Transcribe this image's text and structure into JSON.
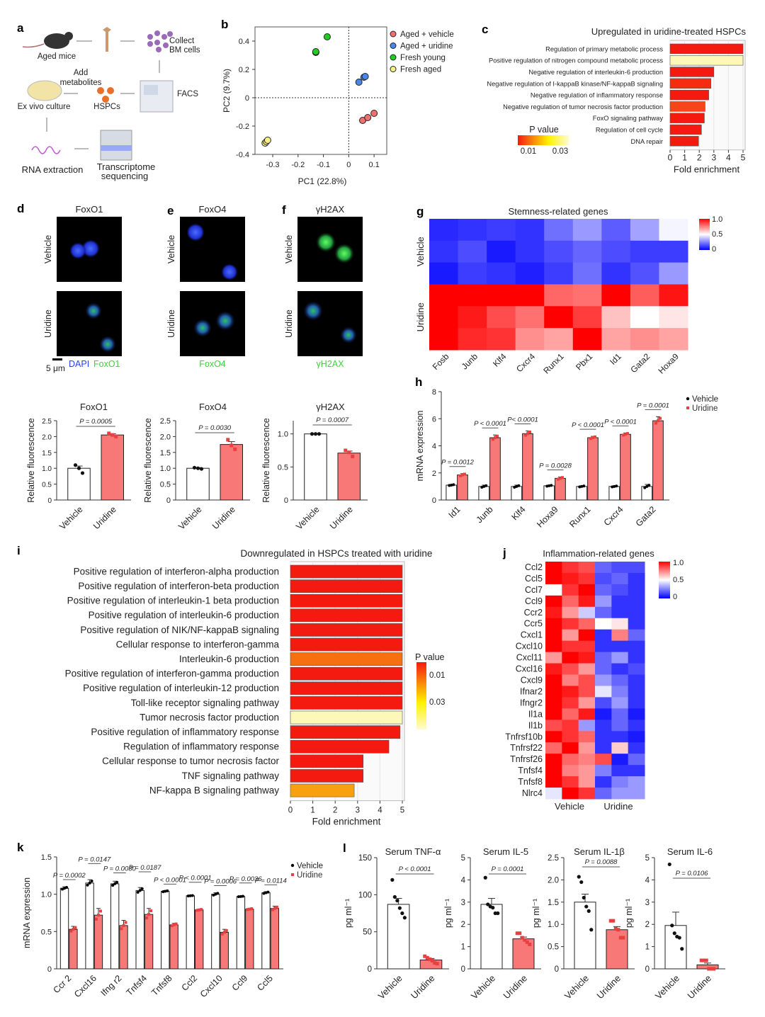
{
  "panel_labels": [
    "a",
    "b",
    "c",
    "d",
    "e",
    "f",
    "g",
    "h",
    "i",
    "j",
    "k",
    "l"
  ],
  "schematic": {
    "aged_mice": "Aged mice",
    "collect": "Collect",
    "bm_cells": "BM cells",
    "facs": "FACS",
    "add": "Add",
    "metabolites": "metabolites",
    "hspcs": "HSPCs",
    "culture": "Ex vivo culture",
    "rna": "RNA extraction",
    "seq1": "Transcriptome",
    "seq2": "sequencing"
  },
  "microscopy": [
    {
      "title": "FoxO1",
      "rows": [
        "Vehicle",
        "Uridine"
      ],
      "legend": [
        "DAPI",
        "FoxO1"
      ],
      "scale_bar": "5 μm",
      "stain_color": "#3cd23c"
    },
    {
      "title": "FoxO4",
      "rows": [
        "Vehicle",
        "Uridine"
      ],
      "legend": [
        "FoxO4"
      ]
    },
    {
      "title": "γH2AX",
      "rows": [
        "Vehicle",
        "Uridine"
      ],
      "legend": [
        "γH2AX"
      ]
    }
  ],
  "colors": {
    "vehicle": "#ffffff",
    "uridine": "#f87878",
    "dapi": "#2a3cff",
    "stain": "#3cd23c"
  },
  "chart_data": [
    {
      "type": "scatter",
      "xlabel": "PC1 (22.8%)",
      "ylabel": "PC2 (9.7%)",
      "xlim": [
        -0.37,
        0.15
      ],
      "ylim": [
        -0.4,
        0.5
      ],
      "xticks": [
        "-0.3",
        "-0.2",
        "-0.1",
        "0",
        "0.1"
      ],
      "yticks": [
        "0.4",
        "0.2",
        "0",
        "-0.2",
        "-0.4"
      ],
      "legend": "right",
      "series": [
        {
          "name": "Aged + vehicle",
          "color": "#f07070",
          "points": [
            [
              0.055,
              -0.16
            ],
            [
              0.075,
              -0.14
            ],
            [
              0.1,
              -0.11
            ]
          ]
        },
        {
          "name": "Aged + uridine",
          "color": "#4a86e8",
          "points": [
            [
              0.04,
              0.11
            ],
            [
              0.06,
              0.145
            ],
            [
              0.065,
              0.15
            ]
          ]
        },
        {
          "name": "Fresh young",
          "color": "#22cc22",
          "points": [
            [
              -0.085,
              0.43
            ],
            [
              -0.13,
              0.32
            ],
            [
              -0.13,
              0.325
            ]
          ]
        },
        {
          "name": "Fresh aged",
          "color": "#f6f08a",
          "points": [
            [
              -0.33,
              -0.32
            ],
            [
              -0.325,
              -0.31
            ],
            [
              -0.32,
              -0.3
            ]
          ]
        }
      ]
    },
    {
      "type": "bar",
      "orientation": "horizontal",
      "title": "Upregulated in uridine-treated HSPCs",
      "categories": [
        "Regulation of primary metabolic process",
        "Positive regulation of nitrogen compound metabolic process",
        "Negative regulation of interleukin-6 production",
        "Negative regulation of I-kappaB kinase/NF-kappaB signaling",
        "Negative regulation of inflammatory response",
        "Negative regulation of tumor necrosis factor production",
        "FoxO signaling pathway",
        "Regulation of cell cycle",
        "DNA repair"
      ],
      "values": [
        5,
        5,
        3.0,
        2.8,
        2.65,
        2.4,
        2.35,
        2.15,
        1.95
      ],
      "colors": [
        "#f41a10",
        "#fdf8b8",
        "#f41a10",
        "#f52c10",
        "#f41a10",
        "#f64518",
        "#f41a10",
        "#f41a10",
        "#f41a10"
      ],
      "xlabel": "Fold enrichment",
      "xlim": [
        0,
        5
      ],
      "xticks": [
        "0",
        "1",
        "2",
        "3",
        "4",
        "5"
      ],
      "colorbar": {
        "label": "P value",
        "ticks": [
          "0.01",
          "0.03"
        ]
      }
    },
    {
      "type": "heatmap",
      "title": "Stemness-related genes",
      "columns": [
        "Fosb",
        "Junb",
        "Klf4",
        "Cxcr4",
        "Runx1",
        "Pbx1",
        "Id1",
        "Gata2",
        "Hoxa9"
      ],
      "row_groups": [
        "Vehicle",
        "Uridine"
      ],
      "values": [
        [
          0.08,
          0.1,
          0.12,
          0.1,
          0.22,
          0.3,
          0.18,
          0.32,
          0.48
        ],
        [
          0.1,
          0.15,
          0.05,
          0.1,
          0.15,
          0.2,
          0.15,
          0.12,
          0.12
        ],
        [
          0.05,
          0.12,
          0.1,
          0.06,
          0.12,
          0.22,
          0.1,
          0.16,
          0.3
        ],
        [
          1,
          1,
          1,
          1,
          0.8,
          0.78,
          1,
          0.82,
          0.96
        ],
        [
          1,
          0.95,
          0.85,
          0.78,
          1,
          0.88,
          0.62,
          0.5,
          0.55
        ],
        [
          1,
          0.92,
          0.9,
          0.72,
          0.68,
          1,
          0.68,
          0.72,
          0.68
        ]
      ],
      "colorbar": {
        "ticks": [
          "1.0",
          "0.5",
          "0"
        ]
      }
    },
    {
      "type": "bar",
      "title": "FoxO1",
      "ylabel": "Relative fluorescence",
      "categories": [
        "Vehicle",
        "Uridine"
      ],
      "values": [
        1.0,
        2.05
      ],
      "errors": [
        0.07,
        0.04
      ],
      "points": [
        [
          1.1,
          1.0,
          0.85
        ],
        [
          2.1,
          2.05,
          2.0
        ]
      ],
      "ylim": [
        0,
        2.5
      ],
      "yticks": [
        "0",
        "0.5",
        "1.0",
        "1.5",
        "2.0",
        "2.5"
      ],
      "p_value": "P = 0.0005"
    },
    {
      "type": "bar",
      "title": "FoxO4",
      "ylabel": "Relative fluorescence",
      "categories": [
        "Vehicle",
        "Uridine"
      ],
      "values": [
        1.0,
        1.75
      ],
      "errors": [
        0.02,
        0.09
      ],
      "points": [
        [
          1.02,
          1.0,
          0.98
        ],
        [
          1.9,
          1.72,
          1.6
        ]
      ],
      "ylim": [
        0,
        2.5
      ],
      "yticks": [
        "0",
        "0.5",
        "1.0",
        "1.5",
        "2.0",
        "2.5"
      ],
      "p_value": "P = 0.0030"
    },
    {
      "type": "bar",
      "title": "γH2AX",
      "ylabel": "Relative fluorescence",
      "categories": [
        "Vehicle",
        "Uridine"
      ],
      "values": [
        1.0,
        0.71
      ],
      "errors": [
        0.005,
        0.03
      ],
      "points": [
        [
          1.0,
          1.0,
          1.0
        ],
        [
          0.75,
          0.72,
          0.66
        ]
      ],
      "ylim": [
        0,
        1.2
      ],
      "yticks": [
        "0",
        "0.5",
        "1.0"
      ],
      "p_value": "P = 0.0007"
    },
    {
      "type": "bar",
      "ylabel": "mRNA expression",
      "ylim": [
        0,
        8
      ],
      "yticks": [
        "0",
        "2",
        "4",
        "6",
        "8"
      ],
      "legend": "top-right",
      "categories": [
        "Id1",
        "Junb",
        "Klf4",
        "Hoxa9",
        "Runx1",
        "Cxcr4",
        "Gata2"
      ],
      "series": [
        {
          "name": "Vehicle",
          "values": [
            1.1,
            1.0,
            1.0,
            1.05,
            1.0,
            1.0,
            1.0
          ]
        },
        {
          "name": "Uridine",
          "values": [
            1.85,
            4.6,
            4.9,
            1.6,
            4.6,
            4.85,
            5.85
          ]
        }
      ],
      "errors": [
        0.1,
        0.2,
        0.2,
        0.1,
        0.1,
        0.1,
        0.3
      ],
      "p_values": [
        "P = 0.0012",
        "P < 0.0001",
        "P< 0.0001",
        "P = 0.0028",
        "P < 0.0001",
        "P < 0.0001",
        "P = 0.0001"
      ]
    },
    {
      "type": "bar",
      "orientation": "horizontal",
      "title": "Downregulated in HSPCs treated with uridine",
      "categories": [
        "Positive regulation of interferon-alpha production",
        "Positive regulation of interferon-beta production",
        "Positive regulation of interleukin-1 beta production",
        "Positive regulation of interleukin-6 production",
        "Positive regulation of NIK/NF-kappaB signaling",
        "Cellular response to interferon-gamma",
        "Interleukin-6 production",
        "Positive regulation of interferon-gamma production",
        "Positive regulation of interleukin-12 production",
        "Toll-like receptor signaling pathway",
        "Tumor necrosis factor production",
        "Positive regulation of inflammatory response",
        "Regulation of inflammatory response",
        "Cellular response to tumor necrosis factor",
        "TNF signaling pathway",
        "NF-kappa B signaling pathway"
      ],
      "values": [
        5,
        5,
        5,
        5,
        5,
        5,
        5,
        5,
        5,
        5,
        5,
        4.9,
        4.4,
        3.25,
        3.25,
        2.85
      ],
      "colors": [
        "#f41a10",
        "#f41a10",
        "#f41a10",
        "#f41a10",
        "#f41a10",
        "#f41a10",
        "#f7700f",
        "#f41a10",
        "#f41a10",
        "#f41a10",
        "#fdf8b8",
        "#f41a10",
        "#f41a10",
        "#f41a10",
        "#f41a10",
        "#f8a010"
      ],
      "xlabel": "Fold enrichment",
      "xlim": [
        0,
        5
      ],
      "xticks": [
        "0",
        "1",
        "2",
        "3",
        "4",
        "5"
      ],
      "colorbar": {
        "label": "P value",
        "ticks": [
          "0.01",
          "0.03"
        ]
      }
    },
    {
      "type": "heatmap",
      "title": "Inflammation-related genes",
      "rows": [
        "Ccl2",
        "Ccl5",
        "Ccl7",
        "Ccl9",
        "Ccr2",
        "Ccr5",
        "Cxcl1",
        "Cxcl10",
        "Cxcl11",
        "Cxcl16",
        "Cxcl9",
        "Ifnar2",
        "Ifngr2",
        "Il1a",
        "Il1b",
        "Tnfrsf10b",
        "Tnfrsf22",
        "Tnfrsf26",
        "Tnfsf4",
        "Tnfsf8",
        "Nlrc4"
      ],
      "column_groups": [
        "Vehicle",
        "Uridine"
      ],
      "values": [
        [
          1,
          0.9,
          0.85,
          0.2,
          0.15,
          0.15
        ],
        [
          1,
          0.95,
          0.9,
          0.15,
          0.2,
          0.1
        ],
        [
          0.5,
          0.9,
          1,
          0.2,
          0.15,
          0.1
        ],
        [
          1,
          0.8,
          0.95,
          0.3,
          0.1,
          0.1
        ],
        [
          0.95,
          0.7,
          0.4,
          0.2,
          0.1,
          0.1
        ],
        [
          1,
          0.9,
          0.8,
          0.5,
          0.55,
          0.1
        ],
        [
          1,
          0.7,
          1,
          0.1,
          0.75,
          0.2
        ],
        [
          1,
          0.9,
          0.9,
          0.1,
          0.1,
          0.1
        ],
        [
          0.7,
          1,
          0.95,
          0.2,
          0.3,
          0.1
        ],
        [
          0.95,
          0.85,
          0.7,
          0.2,
          0.1,
          0.15
        ],
        [
          1,
          0.75,
          0.85,
          0.3,
          0.2,
          0.1
        ],
        [
          1,
          0.95,
          0.85,
          0.45,
          0.25,
          0.1
        ],
        [
          1,
          0.9,
          0.7,
          0.15,
          0.3,
          0.1
        ],
        [
          1,
          0.8,
          0.95,
          0.05,
          0.2,
          0.05
        ],
        [
          0.85,
          0.9,
          0.3,
          0.1,
          0.2,
          0.1
        ],
        [
          1,
          0.9,
          0.8,
          0.1,
          0.1,
          0.05
        ],
        [
          0.8,
          1,
          0.7,
          0.1,
          0.6,
          0.1
        ],
        [
          1,
          0.8,
          0.75,
          0.85,
          0.05,
          0.2
        ],
        [
          1,
          0.75,
          0.7,
          0.25,
          0.1,
          0.1
        ],
        [
          1,
          0.9,
          0.7,
          0.1,
          0.25,
          0.3
        ],
        [
          0.45,
          1,
          0.9,
          0.2,
          0.3,
          0.3
        ]
      ],
      "colorbar": {
        "ticks": [
          "1.0",
          "0.5",
          "0"
        ]
      }
    },
    {
      "type": "bar",
      "ylabel": "mRNA expression",
      "ylim": [
        0,
        1.5
      ],
      "yticks": [
        "0",
        "0.5",
        "1.0",
        "1.5"
      ],
      "legend": "top-right",
      "categories": [
        "Ccr 2",
        "Cxcl16",
        "Ifng r2",
        "Tnfsf4",
        "Tnfsf8",
        "Ccl2",
        "Cxcl10",
        "Ccl9",
        "Ccl5"
      ],
      "series": [
        {
          "name": "Vehicle",
          "values": [
            1.08,
            1.15,
            1.14,
            1.05,
            1.04,
            0.98,
            1.0,
            0.97,
            1.02
          ]
        },
        {
          "name": "Uridine",
          "values": [
            0.53,
            0.72,
            0.58,
            0.73,
            0.59,
            0.79,
            0.49,
            0.8,
            0.81
          ]
        }
      ],
      "errors": [
        0.04,
        0.09,
        0.07,
        0.08,
        0.02,
        0.01,
        0.04,
        0.01,
        0.03
      ],
      "p_values": [
        "P = 0.0002",
        "P = 0.0147",
        "P = 0.0030",
        "P = 0.0187",
        "P < 0.0001",
        "P < 0.0001",
        "P = 0.0006",
        "P = 0.0036",
        "P = 0.0114"
      ]
    },
    {
      "type": "bar",
      "title": "Serum TNF-α",
      "ylabel": "pg ml⁻¹",
      "categories": [
        "Vehicle",
        "Uridine"
      ],
      "values": [
        87,
        12
      ],
      "errors": [
        8,
        2
      ],
      "points": [
        [
          120,
          97,
          92,
          82,
          75,
          69
        ],
        [
          17,
          15,
          13,
          11,
          8,
          7
        ]
      ],
      "ylim": [
        0,
        150
      ],
      "yticks": [
        "0",
        "50",
        "100",
        "150"
      ],
      "p_value": "P < 0.0001"
    },
    {
      "type": "bar",
      "title": "Serum IL-5",
      "ylabel": "pg ml⁻¹",
      "categories": [
        "Vehicle",
        "Uridine"
      ],
      "values": [
        2.9,
        1.35
      ],
      "errors": [
        0.27,
        0.08
      ],
      "points": [
        [
          4.1,
          2.9,
          2.8,
          2.75,
          2.5,
          2.5
        ],
        [
          1.6,
          1.6,
          1.4,
          1.3,
          1.2,
          1.1
        ]
      ],
      "ylim": [
        0,
        5
      ],
      "yticks": [
        "0",
        "1",
        "2",
        "3",
        "4",
        "5"
      ],
      "p_value": "P = 0.0001"
    },
    {
      "type": "bar",
      "title": "Serum IL-1β",
      "ylabel": "pg ml⁻¹",
      "categories": [
        "Vehicle",
        "Uridine"
      ],
      "values": [
        1.5,
        0.88
      ],
      "errors": [
        0.18,
        0.07
      ],
      "points": [
        [
          2.07,
          1.95,
          1.6,
          1.4,
          1.3,
          0.88
        ],
        [
          1.08,
          1.08,
          0.9,
          0.88,
          0.7,
          0.7
        ]
      ],
      "ylim": [
        0,
        2.5
      ],
      "yticks": [
        "0",
        "0.5",
        "1.0",
        "1.5",
        "2.0",
        "2.5"
      ],
      "p_value": "P = 0.0088"
    },
    {
      "type": "bar",
      "title": "Serum IL-6",
      "ylabel": "pg ml⁻¹",
      "categories": [
        "Vehicle",
        "Uridine"
      ],
      "values": [
        1.95,
        0.18
      ],
      "errors": [
        0.6,
        0.08
      ],
      "points": [
        [
          4.7,
          1.95,
          1.6,
          1.45,
          1.4,
          0.9
        ],
        [
          0.38,
          0.38,
          0.38,
          0,
          0,
          0
        ]
      ],
      "ylim": [
        0,
        5
      ],
      "yticks": [
        "0",
        "1",
        "2",
        "3",
        "4",
        "5"
      ],
      "p_value": "P = 0.0106"
    }
  ]
}
